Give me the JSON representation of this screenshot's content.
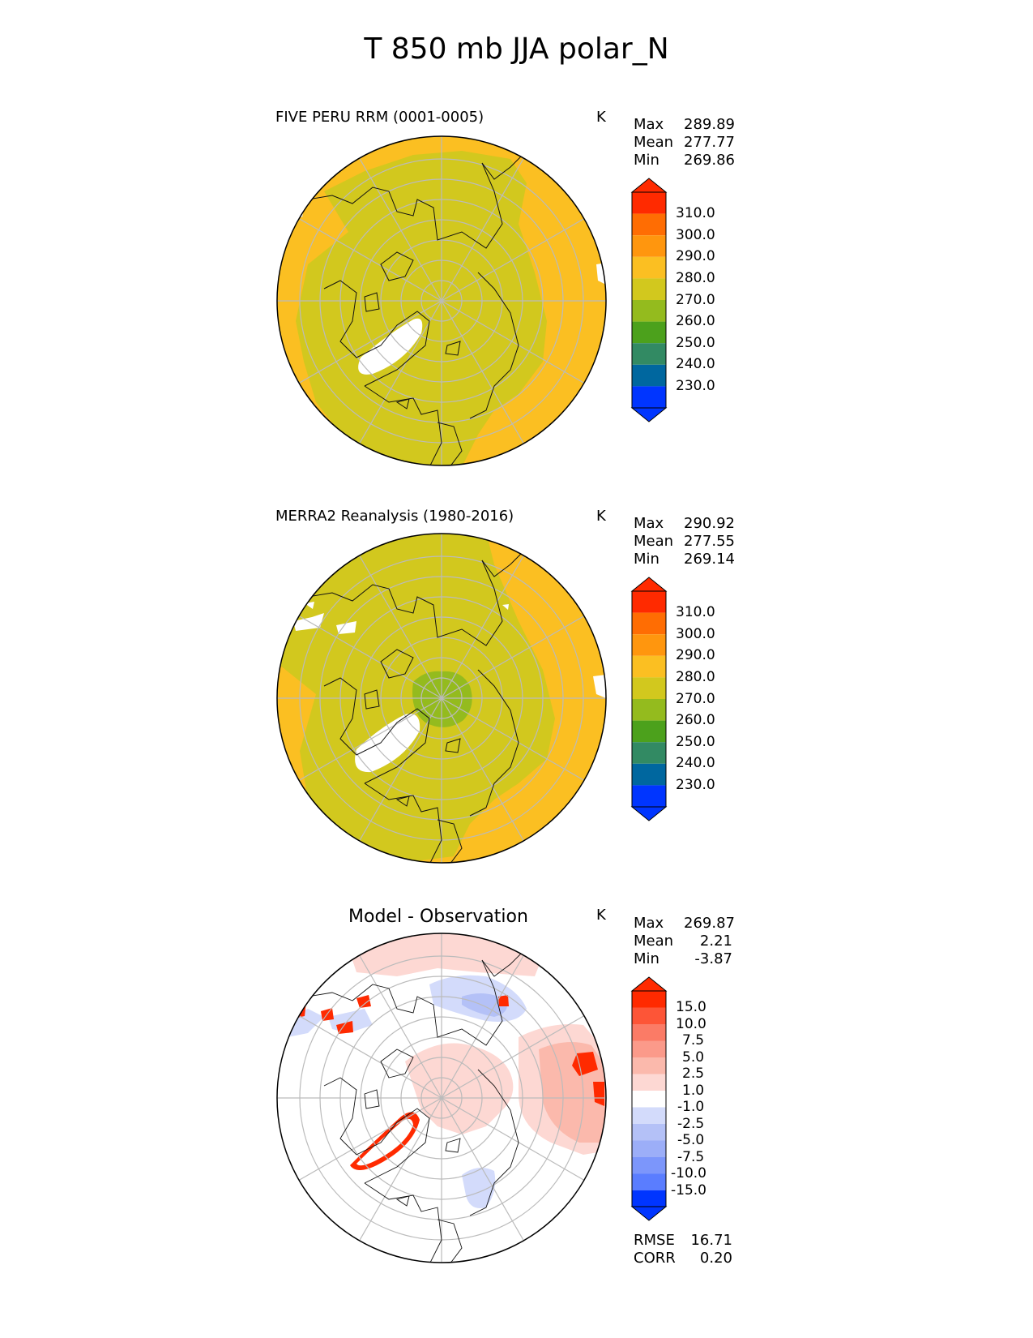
{
  "figure": {
    "title": "T 850 mb JJA polar_N"
  },
  "panels": [
    {
      "title": "FIVE PERU RRM (0001-0005)",
      "units": "K",
      "stats": [
        {
          "label": "Max",
          "value": "289.89"
        },
        {
          "label": "Mean",
          "value": "277.77"
        },
        {
          "label": "Min",
          "value": "269.86"
        }
      ]
    },
    {
      "title": "MERRA2 Reanalysis (1980-2016)",
      "units": "K",
      "stats": [
        {
          "label": "Max",
          "value": "290.92"
        },
        {
          "label": "Mean",
          "value": "277.55"
        },
        {
          "label": "Min",
          "value": "269.14"
        }
      ]
    },
    {
      "title": "Model - Observation",
      "units": "K",
      "stats": [
        {
          "label": "Max",
          "value": "269.87"
        },
        {
          "label": "Mean",
          "value": "2.21"
        },
        {
          "label": "Min",
          "value": "-3.87"
        }
      ],
      "metrics": [
        {
          "label": "RMSE",
          "value": "16.71"
        },
        {
          "label": "CORR",
          "value": "0.20"
        }
      ]
    }
  ],
  "colors": {
    "field_warm": "#fbbf22",
    "field_mid": "#d2c81e",
    "field_cold": "#94bb1e",
    "missing": "#ffffff",
    "diff_pos_light": "#fdd8d3",
    "diff_pos_mid": "#fbb9ac",
    "diff_pos_strong": "#ff2a00",
    "diff_neg_light": "#d3dbfb",
    "diff_neg_mid": "#b4c1f7",
    "coastline": "#111111",
    "grid": "#bbbbbb"
  },
  "chart_data": [
    {
      "type": "heatmap",
      "projection": "north-polar-stereographic",
      "title": "FIVE PERU RRM (0001-0005)",
      "units": "K",
      "colorbar": {
        "extend": "both",
        "levels": [
          230.0,
          240.0,
          250.0,
          260.0,
          270.0,
          280.0,
          290.0,
          300.0,
          310.0
        ],
        "tick_labels": [
          "310.0",
          "300.0",
          "290.0",
          "280.0",
          "270.0",
          "260.0",
          "250.0",
          "240.0",
          "230.0"
        ],
        "colors_bottom_to_top": [
          "#0035ff",
          "#00679f",
          "#328a63",
          "#4ca11c",
          "#94bb1e",
          "#d2c81e",
          "#fbbf22",
          "#ff960e",
          "#ff6d03",
          "#ff2a00"
        ]
      }
    },
    {
      "type": "heatmap",
      "projection": "north-polar-stereographic",
      "title": "MERRA2 Reanalysis (1980-2016)",
      "units": "K",
      "colorbar": {
        "extend": "both",
        "levels": [
          230.0,
          240.0,
          250.0,
          260.0,
          270.0,
          280.0,
          290.0,
          300.0,
          310.0
        ],
        "tick_labels": [
          "310.0",
          "300.0",
          "290.0",
          "280.0",
          "270.0",
          "260.0",
          "250.0",
          "240.0",
          "230.0"
        ],
        "colors_bottom_to_top": [
          "#0035ff",
          "#00679f",
          "#328a63",
          "#4ca11c",
          "#94bb1e",
          "#d2c81e",
          "#fbbf22",
          "#ff960e",
          "#ff6d03",
          "#ff2a00"
        ]
      }
    },
    {
      "type": "heatmap",
      "projection": "north-polar-stereographic",
      "title": "Model - Observation",
      "units": "K",
      "colorbar": {
        "extend": "both",
        "levels": [
          -15.0,
          -10.0,
          -7.5,
          -5.0,
          -2.5,
          -1.0,
          1.0,
          2.5,
          5.0,
          7.5,
          10.0,
          15.0
        ],
        "tick_labels": [
          "15.0",
          "10.0",
          "7.5",
          "5.0",
          "2.5",
          "1.0",
          "-1.0",
          "-2.5",
          "-5.0",
          "-7.5",
          "-10.0",
          "-15.0"
        ],
        "colors_bottom_to_top": [
          "#0035ff",
          "#2a58ff",
          "#5a7dff",
          "#7c96fb",
          "#9caef8",
          "#b4c1f7",
          "#d3dbfb",
          "#ffffff",
          "#fdd8d3",
          "#fbb9ac",
          "#fb9a8a",
          "#fb7b66",
          "#fd5537",
          "#ff2a00"
        ]
      }
    }
  ]
}
